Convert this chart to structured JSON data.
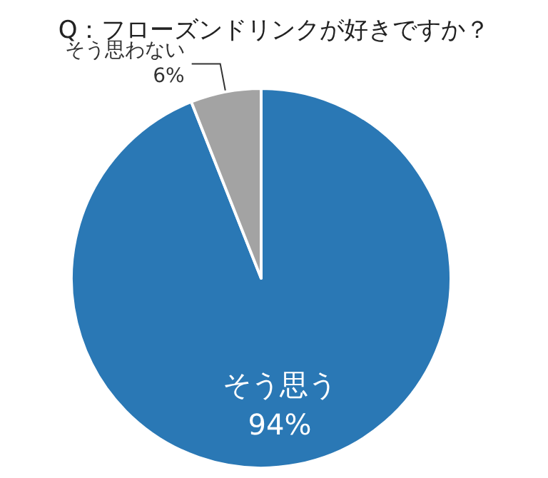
{
  "chart_data": {
    "type": "pie",
    "title": "Q：フローズンドリンクが好きですか？",
    "categories": [
      "そう思う",
      "そう思わない"
    ],
    "values": [
      94,
      6
    ],
    "colors": [
      "#2a78b5",
      "#a3a3a3"
    ],
    "value_labels": [
      "94%",
      "6%"
    ],
    "legend": false
  }
}
